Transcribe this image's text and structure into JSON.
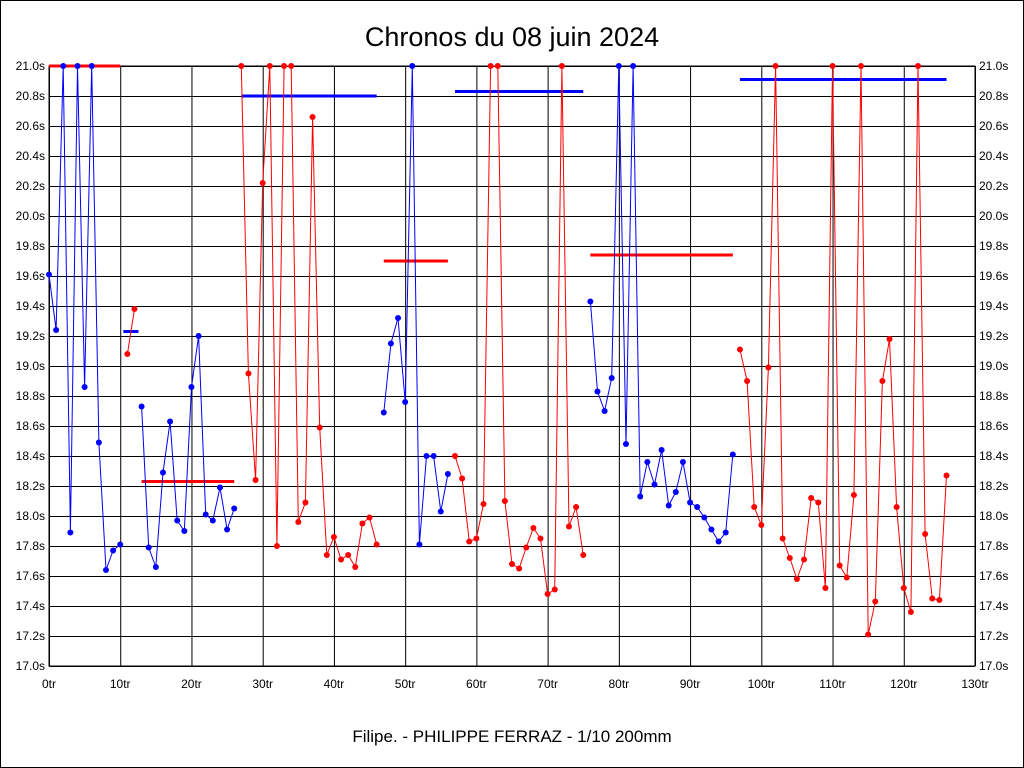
{
  "chart_data": {
    "type": "line",
    "title": "Chronos du 08 juin 2024",
    "footer": "Filipe. - PHILIPPE FERRAZ - 1/10 200mm",
    "xlabel": "",
    "ylabel": "",
    "xlim": [
      0,
      130
    ],
    "ylim": [
      17.0,
      21.0
    ],
    "x_ticks": [
      0,
      10,
      20,
      30,
      40,
      50,
      60,
      70,
      80,
      90,
      100,
      110,
      120,
      130
    ],
    "x_tick_labels": [
      "0tr",
      "10tr",
      "20tr",
      "30tr",
      "40tr",
      "50tr",
      "60tr",
      "70tr",
      "80tr",
      "90tr",
      "100tr",
      "110tr",
      "120tr",
      "130tr"
    ],
    "y_ticks": [
      17.0,
      17.2,
      17.4,
      17.6,
      17.8,
      18.0,
      18.2,
      18.4,
      18.6,
      18.8,
      19.0,
      19.2,
      19.4,
      19.6,
      19.8,
      20.0,
      20.2,
      20.4,
      20.6,
      20.8,
      21.0
    ],
    "y_tick_labels": [
      "17.0s",
      "17.2s",
      "17.4s",
      "17.6s",
      "17.8s",
      "18.0s",
      "18.2s",
      "18.4s",
      "18.6s",
      "18.8s",
      "19.0s",
      "19.2s",
      "19.4s",
      "19.6s",
      "19.8s",
      "20.0s",
      "20.2s",
      "20.4s",
      "20.6s",
      "20.8s",
      "21.0s"
    ],
    "grid": true,
    "colors": {
      "blue": "#0000ff",
      "red": "#ff0000",
      "grid": "#000000"
    },
    "series": [
      {
        "name": "segment-1",
        "color": "blue",
        "x": [
          0,
          1,
          2,
          3,
          4,
          5,
          6,
          7,
          8,
          9,
          10
        ],
        "y": [
          19.61,
          19.24,
          21.0,
          17.89,
          21.0,
          18.86,
          21.0,
          18.49,
          17.64,
          17.77,
          17.81
        ],
        "mean": {
          "x": [
            0,
            10
          ],
          "y": 21.0,
          "color": "red"
        }
      },
      {
        "name": "segment-2",
        "color": "red",
        "x": [
          11,
          12
        ],
        "y": [
          19.08,
          19.38
        ],
        "mean": {
          "x": [
            11,
            12
          ],
          "y": 19.23,
          "color": "blue"
        }
      },
      {
        "name": "segment-3",
        "color": "blue",
        "x": [
          13,
          14,
          15,
          16,
          17,
          18,
          19,
          20,
          21,
          22,
          23,
          24,
          25,
          26
        ],
        "y": [
          18.73,
          17.79,
          17.66,
          18.29,
          18.63,
          17.97,
          17.9,
          18.86,
          19.2,
          18.01,
          17.97,
          18.19,
          17.91,
          18.05
        ],
        "mean": {
          "x": [
            13,
            26
          ],
          "y": 18.23,
          "color": "red"
        }
      },
      {
        "name": "segment-4",
        "color": "red",
        "x": [
          27,
          28,
          29,
          30,
          31,
          32,
          33,
          34,
          35,
          36,
          37,
          38,
          39,
          40,
          41,
          42,
          43,
          44,
          45,
          46
        ],
        "y": [
          21.0,
          18.95,
          18.24,
          20.22,
          21.0,
          17.8,
          21.0,
          21.0,
          17.96,
          18.09,
          20.66,
          18.59,
          17.74,
          17.86,
          17.71,
          17.74,
          17.66,
          17.95,
          17.99,
          17.81
        ],
        "mean": {
          "x": [
            27,
            46
          ],
          "y": 20.8,
          "color": "blue"
        }
      },
      {
        "name": "segment-5",
        "color": "blue",
        "x": [
          47,
          48,
          49,
          50,
          51,
          52,
          53,
          54,
          55,
          56
        ],
        "y": [
          18.69,
          19.15,
          19.32,
          18.76,
          21.0,
          17.81,
          18.4,
          18.4,
          18.03,
          18.28
        ],
        "mean": {
          "x": [
            47,
            56
          ],
          "y": 19.7,
          "color": "red"
        }
      },
      {
        "name": "segment-6",
        "color": "red",
        "x": [
          57,
          58,
          59,
          60,
          61,
          62,
          63,
          64,
          65,
          66,
          67,
          68,
          69,
          70,
          71,
          72,
          73,
          74,
          75
        ],
        "y": [
          18.4,
          18.25,
          17.83,
          17.85,
          18.08,
          21.0,
          21.0,
          18.1,
          17.68,
          17.65,
          17.79,
          17.92,
          17.85,
          17.48,
          17.51,
          21.0,
          17.93,
          18.06,
          17.74
        ],
        "mean": {
          "x": [
            57,
            75
          ],
          "y": 20.83,
          "color": "blue"
        }
      },
      {
        "name": "segment-7",
        "color": "blue",
        "x": [
          76,
          77,
          78,
          79,
          80,
          81,
          82,
          83,
          84,
          85,
          86,
          87,
          88,
          89,
          90,
          91,
          92,
          93,
          94,
          95,
          96
        ],
        "y": [
          19.43,
          18.83,
          18.7,
          18.92,
          21.0,
          18.48,
          21.0,
          18.13,
          18.36,
          18.21,
          18.44,
          18.07,
          18.16,
          18.36,
          18.09,
          18.06,
          17.99,
          17.91,
          17.83,
          17.89,
          18.41
        ],
        "mean": {
          "x": [
            76,
            96
          ],
          "y": 19.74,
          "color": "red"
        }
      },
      {
        "name": "segment-8",
        "color": "red",
        "x": [
          97,
          98,
          99,
          100,
          101,
          102,
          103,
          104,
          105,
          106,
          107,
          108,
          109,
          110,
          111,
          112,
          113,
          114,
          115,
          116,
          117,
          118,
          119,
          120,
          121,
          122,
          123,
          124,
          125,
          126
        ],
        "y": [
          19.11,
          18.9,
          18.06,
          17.94,
          18.99,
          21.0,
          17.85,
          17.72,
          17.58,
          17.71,
          18.12,
          18.09,
          17.52,
          21.0,
          17.67,
          17.59,
          18.14,
          21.0,
          17.21,
          17.43,
          18.9,
          19.18,
          18.06,
          17.52,
          17.36,
          21.0,
          17.88,
          17.45,
          17.44,
          18.27
        ],
        "mean": {
          "x": [
            97,
            126
          ],
          "y": 20.91,
          "color": "blue"
        }
      }
    ]
  }
}
